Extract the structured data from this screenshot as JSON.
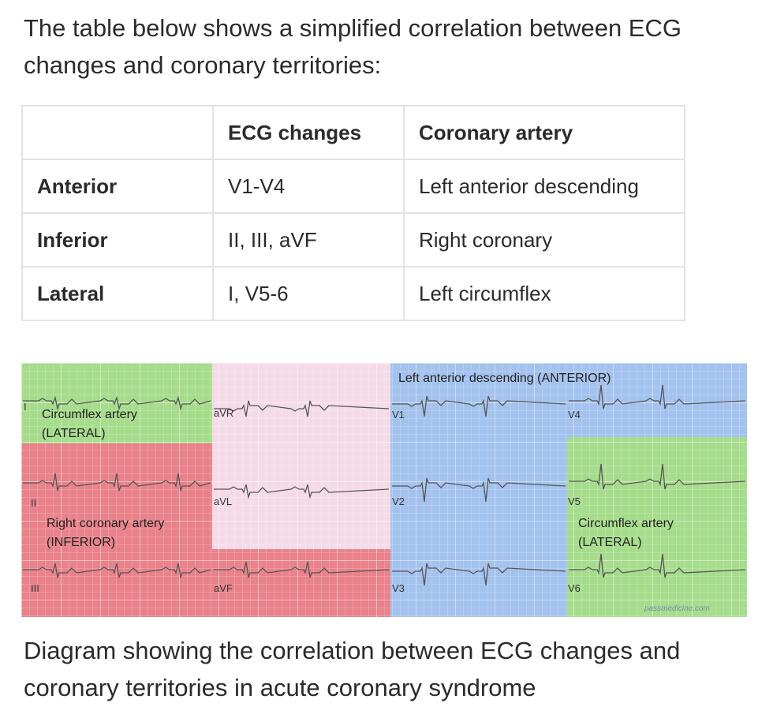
{
  "intro": "The table below shows a simplified correlation between ECG changes and coronary territories:",
  "table": {
    "headers": [
      "",
      "ECG changes",
      "Coronary artery"
    ],
    "rows": [
      {
        "territory": "Anterior",
        "ecg": "V1-V4",
        "artery": "Left anterior descending"
      },
      {
        "territory": "Inferior",
        "ecg": "II, III, aVF",
        "artery": "Right coronary"
      },
      {
        "territory": "Lateral",
        "ecg": "I, V5-6",
        "artery": "Left circumflex"
      }
    ]
  },
  "figure": {
    "zones": {
      "lateral_top": [
        "Circumflex artery",
        "(LATERAL)"
      ],
      "inferior": [
        "Right coronary artery",
        "(INFERIOR)"
      ],
      "anterior": "Left anterior descending (ANTERIOR)",
      "lateral_right": [
        "Circumflex artery",
        "(LATERAL)"
      ]
    },
    "leads": {
      "I": "I",
      "II": "II",
      "III": "III",
      "aVR": "aVR",
      "aVL": "aVL",
      "aVF": "aVF",
      "V1": "V1",
      "V2": "V2",
      "V3": "V3",
      "V4": "V4",
      "V5": "V5",
      "V6": "V6"
    },
    "watermark": "passmedicine.com",
    "colors": {
      "lateral": "#a6dc8c",
      "inferior": "#e9828a",
      "septal_pink": "#f5dbe8",
      "anterior": "#a4c2ee"
    }
  },
  "caption": "Diagram showing the correlation between ECG changes and coronary territories in acute coronary syndrome"
}
